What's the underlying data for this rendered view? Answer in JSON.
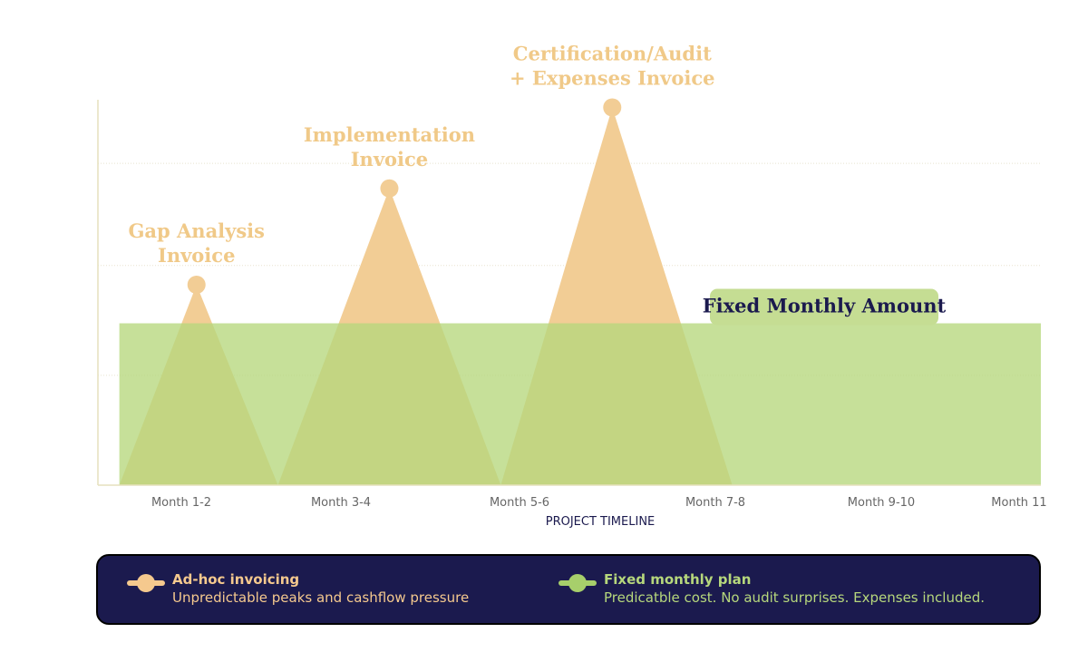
{
  "chart_data": {
    "type": "area",
    "title": "",
    "xlabel": "PROJECT TIMELINE",
    "ylabel": "",
    "grid": true,
    "x_ticks": [
      "Month 1-2",
      "Month 3-4",
      "Month 5-6",
      "Month 7-8",
      "Month 9-10",
      "Month 11"
    ],
    "xlim": [
      0,
      11
    ],
    "ylim": [
      0,
      100
    ],
    "series": [
      {
        "name": "Ad-hoc invoicing",
        "color": "#f2cd95",
        "peaks": [
          {
            "label_lines": [
              "Gap Analysis",
              "Invoice"
            ],
            "start": 0.25,
            "peak": 1.15,
            "end": 2.1,
            "value": 52
          },
          {
            "label_lines": [
              "Implementation",
              "Invoice"
            ],
            "start": 2.1,
            "peak": 3.4,
            "end": 4.7,
            "value": 77
          },
          {
            "label_lines": [
              "Certification/Audit",
              "+ Expenses Invoice"
            ],
            "start": 4.7,
            "peak": 6.0,
            "end": 7.4,
            "value": 98
          }
        ]
      },
      {
        "name": "Fixed monthly plan",
        "color": "#b6d77c",
        "label": "Fixed Monthly Amount",
        "value": 42,
        "x_range": [
          0.25,
          11
        ]
      }
    ]
  },
  "legend": {
    "adhoc": {
      "title": "Ad-hoc invoicing",
      "desc": "Unpredictable peaks and cashflow pressure",
      "icon": "line-dot-marker"
    },
    "fixed": {
      "title": "Fixed monthly plan",
      "desc": "Predicatble cost. No audit surprises. Expenses included.",
      "icon": "line-dot-marker"
    }
  }
}
